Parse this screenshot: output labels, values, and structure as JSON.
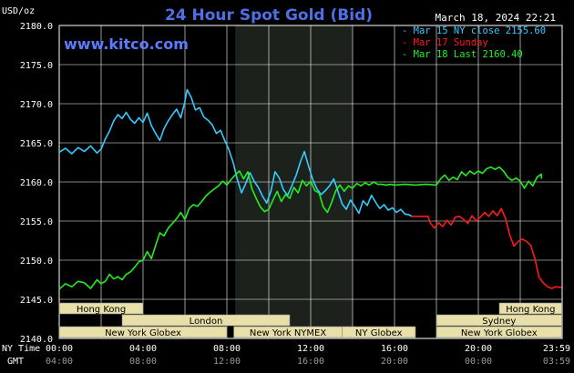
{
  "header": {
    "title": "24 Hour Spot Gold (Bid)",
    "unit": "USD/oz",
    "timestamp": "March 18, 2024 22:21",
    "site": "www.kitco.com"
  },
  "colors": {
    "background": "#000000",
    "plot_bg": "#000000",
    "night_band": "#1c211c",
    "grid": "#ffffff",
    "title": "#4f6fe6",
    "site": "#5b7cff",
    "text": "#ffffff",
    "gmt_text": "#9a9a9a",
    "label_box": "#e8e0a8",
    "label_text": "#000000",
    "ny_close": "#33ccff",
    "sunday": "#ff1a1a",
    "last": "#22ee22"
  },
  "chart_data": {
    "type": "line",
    "title": "24 Hour Spot Gold (Bid)",
    "ylabel": "USD/oz",
    "ylim": [
      2140,
      2180
    ],
    "yticks": [
      {
        "v": 2140,
        "label": "2140.0"
      },
      {
        "v": 2145,
        "label": "2145.0"
      },
      {
        "v": 2150,
        "label": "2150.0"
      },
      {
        "v": 2155,
        "label": "2155.0"
      },
      {
        "v": 2160,
        "label": "2160.0"
      },
      {
        "v": 2165,
        "label": "2165.0"
      },
      {
        "v": 2170,
        "label": "2170.0"
      },
      {
        "v": 2175,
        "label": "2175.0"
      },
      {
        "v": 2180,
        "label": "2180.0"
      }
    ],
    "xlim": [
      0,
      24
    ],
    "xgrid": [
      2,
      4,
      6,
      8,
      10,
      12,
      14,
      16,
      18,
      20,
      22
    ],
    "night_band": [
      8.4,
      14.0
    ],
    "x_axis_label": "NY Time",
    "gmt_axis_label": "GMT",
    "xticks": [
      {
        "h": 0,
        "label": "00:00",
        "gmt": "04:00"
      },
      {
        "h": 4,
        "label": "04:00",
        "gmt": "08:00"
      },
      {
        "h": 8,
        "label": "08:00",
        "gmt": "12:00"
      },
      {
        "h": 12,
        "label": "12:00",
        "gmt": "16:00"
      },
      {
        "h": 16,
        "label": "16:00",
        "gmt": "20:00"
      },
      {
        "h": 20,
        "label": "20:00",
        "gmt": "00:00"
      },
      {
        "h": 23.98,
        "label": "23:59",
        "gmt": "03:59"
      }
    ],
    "legend": {
      "position": "top-right",
      "entries": [
        {
          "marker": "-",
          "label": "Mar 15 NY close 2155.60",
          "color": "#33ccff"
        },
        {
          "marker": "-",
          "label": "Mar 17 Sunday",
          "color": "#ff1a1a"
        },
        {
          "marker": "-",
          "label": "Mar 18 Last 2160.40",
          "color": "#22ee22"
        }
      ]
    },
    "series": [
      {
        "name": "Mar 15 NY close 2155.60",
        "color": "#33ccff",
        "points": [
          [
            0.0,
            2163.8
          ],
          [
            0.3,
            2164.3
          ],
          [
            0.6,
            2163.6
          ],
          [
            0.9,
            2164.4
          ],
          [
            1.2,
            2163.9
          ],
          [
            1.5,
            2164.6
          ],
          [
            1.8,
            2163.7
          ],
          [
            2.0,
            2164.2
          ],
          [
            2.2,
            2165.5
          ],
          [
            2.4,
            2166.5
          ],
          [
            2.6,
            2167.8
          ],
          [
            2.8,
            2168.6
          ],
          [
            3.0,
            2168.1
          ],
          [
            3.2,
            2168.9
          ],
          [
            3.4,
            2168.0
          ],
          [
            3.6,
            2167.5
          ],
          [
            3.8,
            2168.2
          ],
          [
            4.0,
            2167.6
          ],
          [
            4.2,
            2168.8
          ],
          [
            4.4,
            2167.2
          ],
          [
            4.6,
            2166.2
          ],
          [
            4.8,
            2165.3
          ],
          [
            5.0,
            2166.8
          ],
          [
            5.2,
            2167.8
          ],
          [
            5.4,
            2168.6
          ],
          [
            5.6,
            2169.3
          ],
          [
            5.8,
            2168.2
          ],
          [
            6.0,
            2170.3
          ],
          [
            6.1,
            2171.8
          ],
          [
            6.3,
            2170.8
          ],
          [
            6.5,
            2169.2
          ],
          [
            6.7,
            2169.5
          ],
          [
            6.9,
            2168.3
          ],
          [
            7.1,
            2167.9
          ],
          [
            7.3,
            2167.3
          ],
          [
            7.5,
            2166.2
          ],
          [
            7.7,
            2166.6
          ],
          [
            7.9,
            2165.3
          ],
          [
            8.1,
            2164.1
          ],
          [
            8.3,
            2162.5
          ],
          [
            8.5,
            2160.3
          ],
          [
            8.7,
            2158.6
          ],
          [
            8.9,
            2159.8
          ],
          [
            9.1,
            2161.2
          ],
          [
            9.3,
            2160.1
          ],
          [
            9.5,
            2159.3
          ],
          [
            9.7,
            2158.2
          ],
          [
            9.9,
            2157.3
          ],
          [
            10.1,
            2158.8
          ],
          [
            10.3,
            2161.3
          ],
          [
            10.5,
            2160.5
          ],
          [
            10.7,
            2159.0
          ],
          [
            10.9,
            2158.3
          ],
          [
            11.1,
            2159.5
          ],
          [
            11.3,
            2160.8
          ],
          [
            11.5,
            2162.5
          ],
          [
            11.7,
            2163.9
          ],
          [
            11.9,
            2162.0
          ],
          [
            12.1,
            2160.3
          ],
          [
            12.3,
            2159.1
          ],
          [
            12.5,
            2158.4
          ],
          [
            12.7,
            2158.9
          ],
          [
            12.9,
            2159.5
          ],
          [
            13.1,
            2160.4
          ],
          [
            13.3,
            2158.8
          ],
          [
            13.5,
            2157.2
          ],
          [
            13.7,
            2156.5
          ],
          [
            13.9,
            2157.7
          ],
          [
            14.1,
            2156.9
          ],
          [
            14.3,
            2156.0
          ],
          [
            14.5,
            2157.6
          ],
          [
            14.7,
            2157.0
          ],
          [
            14.9,
            2158.3
          ],
          [
            15.1,
            2157.4
          ],
          [
            15.3,
            2156.6
          ],
          [
            15.5,
            2157.1
          ],
          [
            15.7,
            2156.4
          ],
          [
            15.9,
            2156.7
          ],
          [
            16.1,
            2156.1
          ],
          [
            16.3,
            2156.5
          ],
          [
            16.5,
            2155.9
          ],
          [
            16.7,
            2155.8
          ],
          [
            16.83,
            2155.6
          ]
        ]
      },
      {
        "name": "Mar 17 Sunday",
        "color": "#ff1a1a",
        "points": [
          [
            16.83,
            2155.6
          ],
          [
            17.6,
            2155.6
          ],
          [
            17.7,
            2154.8
          ],
          [
            17.9,
            2154.1
          ],
          [
            18.1,
            2154.8
          ],
          [
            18.3,
            2154.3
          ],
          [
            18.5,
            2155.1
          ],
          [
            18.7,
            2154.5
          ],
          [
            18.9,
            2155.5
          ],
          [
            19.1,
            2155.6
          ],
          [
            19.3,
            2155.2
          ],
          [
            19.5,
            2154.7
          ],
          [
            19.7,
            2155.7
          ],
          [
            19.9,
            2155.0
          ],
          [
            20.1,
            2155.5
          ],
          [
            20.3,
            2156.1
          ],
          [
            20.5,
            2155.6
          ],
          [
            20.7,
            2156.3
          ],
          [
            20.9,
            2155.7
          ],
          [
            21.1,
            2156.6
          ],
          [
            21.3,
            2155.3
          ],
          [
            21.5,
            2153.2
          ],
          [
            21.7,
            2151.8
          ],
          [
            21.9,
            2152.4
          ],
          [
            22.1,
            2152.7
          ],
          [
            22.3,
            2152.4
          ],
          [
            22.5,
            2151.9
          ],
          [
            22.7,
            2150.2
          ],
          [
            22.9,
            2147.8
          ],
          [
            23.1,
            2147.1
          ],
          [
            23.3,
            2146.6
          ],
          [
            23.5,
            2146.4
          ],
          [
            23.7,
            2146.6
          ],
          [
            23.98,
            2146.5
          ]
        ]
      },
      {
        "name": "Mar 18 Last 2160.40",
        "color": "#22ee22",
        "points": [
          [
            0.0,
            2146.3
          ],
          [
            0.3,
            2147.0
          ],
          [
            0.6,
            2146.6
          ],
          [
            0.9,
            2147.3
          ],
          [
            1.2,
            2147.1
          ],
          [
            1.5,
            2146.4
          ],
          [
            1.8,
            2147.5
          ],
          [
            2.0,
            2147.0
          ],
          [
            2.2,
            2147.3
          ],
          [
            2.4,
            2148.2
          ],
          [
            2.6,
            2147.6
          ],
          [
            2.8,
            2147.9
          ],
          [
            3.0,
            2147.5
          ],
          [
            3.2,
            2148.2
          ],
          [
            3.4,
            2148.5
          ],
          [
            3.6,
            2149.1
          ],
          [
            3.8,
            2149.8
          ],
          [
            4.0,
            2150.0
          ],
          [
            4.2,
            2151.1
          ],
          [
            4.4,
            2150.2
          ],
          [
            4.6,
            2151.9
          ],
          [
            4.8,
            2153.5
          ],
          [
            5.0,
            2153.1
          ],
          [
            5.2,
            2154.1
          ],
          [
            5.4,
            2154.7
          ],
          [
            5.6,
            2155.3
          ],
          [
            5.8,
            2156.1
          ],
          [
            6.0,
            2155.2
          ],
          [
            6.2,
            2156.6
          ],
          [
            6.4,
            2157.1
          ],
          [
            6.6,
            2156.9
          ],
          [
            6.8,
            2157.5
          ],
          [
            7.0,
            2158.2
          ],
          [
            7.2,
            2158.7
          ],
          [
            7.4,
            2159.1
          ],
          [
            7.6,
            2159.5
          ],
          [
            7.8,
            2160.1
          ],
          [
            8.0,
            2159.6
          ],
          [
            8.2,
            2160.3
          ],
          [
            8.4,
            2160.9
          ],
          [
            8.6,
            2161.4
          ],
          [
            8.8,
            2160.4
          ],
          [
            9.0,
            2161.3
          ],
          [
            9.2,
            2159.1
          ],
          [
            9.4,
            2157.9
          ],
          [
            9.6,
            2156.8
          ],
          [
            9.8,
            2156.2
          ],
          [
            10.0,
            2156.5
          ],
          [
            10.2,
            2157.7
          ],
          [
            10.4,
            2158.8
          ],
          [
            10.6,
            2157.5
          ],
          [
            10.8,
            2158.4
          ],
          [
            11.0,
            2157.9
          ],
          [
            11.2,
            2159.3
          ],
          [
            11.4,
            2158.6
          ],
          [
            11.6,
            2160.2
          ],
          [
            11.8,
            2159.5
          ],
          [
            12.0,
            2160.1
          ],
          [
            12.2,
            2158.9
          ],
          [
            12.4,
            2158.6
          ],
          [
            12.6,
            2156.8
          ],
          [
            12.8,
            2156.1
          ],
          [
            13.0,
            2157.4
          ],
          [
            13.2,
            2158.9
          ],
          [
            13.4,
            2159.6
          ],
          [
            13.6,
            2158.8
          ],
          [
            13.8,
            2159.5
          ],
          [
            14.0,
            2159.2
          ],
          [
            14.2,
            2159.8
          ],
          [
            14.4,
            2159.5
          ],
          [
            14.6,
            2159.9
          ],
          [
            14.8,
            2159.6
          ],
          [
            15.0,
            2160.0
          ],
          [
            15.2,
            2159.7
          ],
          [
            15.4,
            2159.7
          ],
          [
            15.6,
            2159.6
          ],
          [
            15.8,
            2159.7
          ],
          [
            16.0,
            2159.6
          ],
          [
            16.5,
            2159.7
          ],
          [
            17.0,
            2159.6
          ],
          [
            17.5,
            2159.7
          ],
          [
            18.0,
            2159.6
          ],
          [
            18.2,
            2160.4
          ],
          [
            18.4,
            2160.9
          ],
          [
            18.6,
            2160.2
          ],
          [
            18.8,
            2160.6
          ],
          [
            19.0,
            2160.3
          ],
          [
            19.2,
            2161.3
          ],
          [
            19.4,
            2160.8
          ],
          [
            19.6,
            2161.4
          ],
          [
            19.8,
            2161.0
          ],
          [
            20.0,
            2161.4
          ],
          [
            20.2,
            2161.1
          ],
          [
            20.4,
            2161.7
          ],
          [
            20.6,
            2161.9
          ],
          [
            20.8,
            2161.6
          ],
          [
            21.0,
            2161.9
          ],
          [
            21.2,
            2161.4
          ],
          [
            21.4,
            2160.6
          ],
          [
            21.6,
            2160.2
          ],
          [
            21.8,
            2160.5
          ],
          [
            22.0,
            2160.1
          ],
          [
            22.2,
            2159.2
          ],
          [
            22.4,
            2160.1
          ],
          [
            22.6,
            2159.5
          ],
          [
            22.8,
            2160.6
          ],
          [
            23.0,
            2161.0
          ],
          [
            23.02,
            2160.4
          ]
        ]
      }
    ],
    "sessions": [
      {
        "label": "Hong Kong",
        "start": 0,
        "end": 4.0,
        "row": 0
      },
      {
        "label": "London",
        "start": 3.0,
        "end": 11.0,
        "row": 1
      },
      {
        "label": "New York Globex",
        "start": 0,
        "end": 8.0,
        "row": 2
      },
      {
        "label": "New York NYMEX",
        "start": 8.33,
        "end": 13.5,
        "row": 2
      },
      {
        "label": "NY Globex",
        "start": 13.5,
        "end": 17.0,
        "row": 2
      },
      {
        "label": "Hong Kong",
        "start": 21.0,
        "end": 23.98,
        "row": 0
      },
      {
        "label": "Sydney",
        "start": 18.0,
        "end": 23.98,
        "row": 1
      },
      {
        "label": "New York Globex",
        "start": 18.0,
        "end": 23.98,
        "row": 2
      }
    ]
  }
}
